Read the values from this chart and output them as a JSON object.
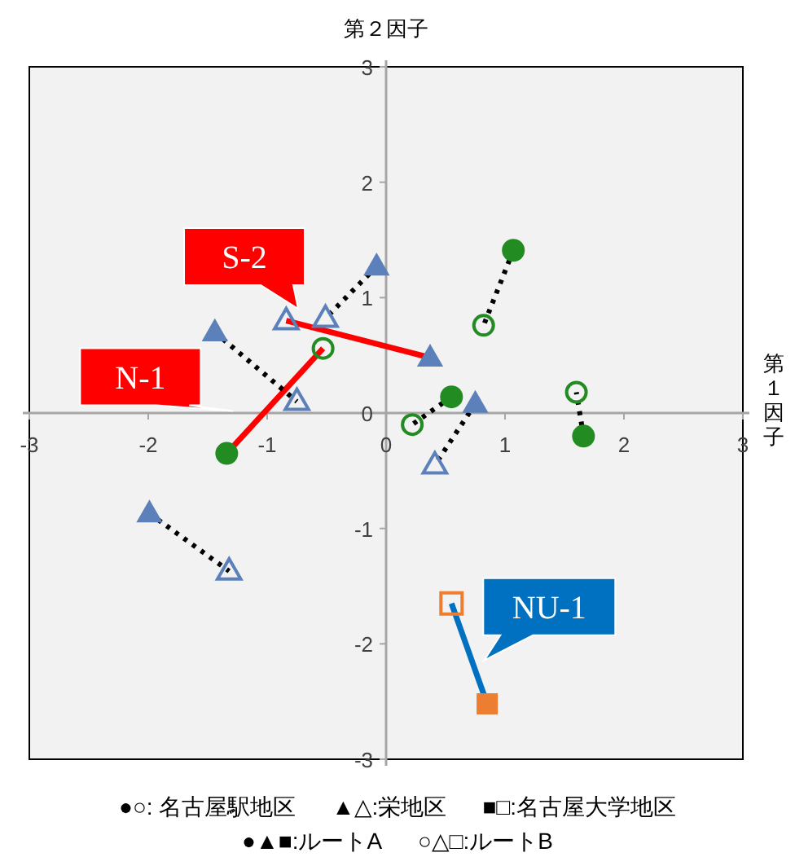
{
  "chart_data": {
    "type": "scatter",
    "xlabel": "第１因子",
    "ylabel": "第２因子",
    "xlim": [
      -3,
      3
    ],
    "ylim": [
      -3,
      3
    ],
    "xticks": [
      -3,
      -2,
      -1,
      0,
      1,
      2,
      3
    ],
    "yticks": [
      -3,
      -2,
      -1,
      0,
      1,
      2,
      3
    ],
    "grid": false,
    "series": [
      {
        "type": "scatter",
        "marker": "circle",
        "color": "#228b22",
        "x": [
          -1.34,
          1.07,
          0.55,
          1.66
        ],
        "values": [
          -0.35,
          1.41,
          0.14,
          -0.2
        ]
      },
      {
        "type": "scatter",
        "marker": "circle-open",
        "color": "#228b22",
        "x": [
          -0.53,
          0.82,
          0.22,
          1.6
        ],
        "values": [
          0.56,
          0.76,
          -0.1,
          0.18
        ]
      },
      {
        "type": "scatter",
        "marker": "triangle",
        "color": "#5b80ba",
        "x": [
          -0.08,
          0.37,
          -1.44,
          0.75,
          -1.99
        ],
        "values": [
          1.27,
          0.48,
          0.7,
          0.08,
          -0.87
        ]
      },
      {
        "type": "scatter",
        "marker": "triangle-open",
        "color": "#5b80ba",
        "x": [
          -0.51,
          -0.84,
          -0.75,
          0.41,
          -1.32
        ],
        "values": [
          0.82,
          0.8,
          0.1,
          -0.45,
          -1.37
        ]
      },
      {
        "type": "scatter",
        "marker": "square",
        "color": "#ed7d31",
        "x": [
          0.85
        ],
        "values": [
          -2.52
        ]
      },
      {
        "type": "scatter",
        "marker": "square-open",
        "color": "#ed7d31",
        "x": [
          0.55
        ],
        "values": [
          -1.65
        ]
      },
      {
        "type": "line",
        "line_style": "solid",
        "color": "#ff0000",
        "x": [
          -1.34,
          -0.53
        ],
        "values": [
          -0.35,
          0.56
        ]
      },
      {
        "type": "line",
        "line_style": "dotted",
        "color": "#000000",
        "x": [
          1.07,
          0.82
        ],
        "values": [
          1.41,
          0.76
        ]
      },
      {
        "type": "line",
        "line_style": "dotted",
        "color": "#000000",
        "x": [
          0.55,
          0.22
        ],
        "values": [
          0.14,
          -0.1
        ]
      },
      {
        "type": "line",
        "line_style": "dotted",
        "color": "#000000",
        "x": [
          1.66,
          1.6
        ],
        "values": [
          -0.2,
          0.18
        ]
      },
      {
        "type": "line",
        "line_style": "dotted",
        "color": "#000000",
        "x": [
          -0.08,
          -0.51
        ],
        "values": [
          1.27,
          0.82
        ]
      },
      {
        "type": "line",
        "line_style": "solid",
        "color": "#ff0000",
        "x": [
          0.37,
          -0.84
        ],
        "values": [
          0.48,
          0.8
        ]
      },
      {
        "type": "line",
        "line_style": "dotted",
        "color": "#000000",
        "x": [
          -1.44,
          -0.75
        ],
        "values": [
          0.7,
          0.1
        ]
      },
      {
        "type": "line",
        "line_style": "dotted",
        "color": "#000000",
        "x": [
          0.75,
          0.41
        ],
        "values": [
          0.08,
          -0.45
        ]
      },
      {
        "type": "line",
        "line_style": "dotted",
        "color": "#000000",
        "x": [
          -1.99,
          -1.32
        ],
        "values": [
          -0.87,
          -1.37
        ]
      },
      {
        "type": "line",
        "line_style": "solid",
        "color": "#0070c0",
        "x": [
          0.55,
          0.85
        ],
        "values": [
          -1.65,
          -2.52
        ]
      }
    ],
    "annotations": [
      "N-1",
      "S-2",
      "NU-1",
      "●○:  名古屋駅地区",
      "▲△:栄地区",
      "■□:名古屋大学地区",
      "●▲■:ルートA",
      "○△□:ルートB"
    ]
  }
}
